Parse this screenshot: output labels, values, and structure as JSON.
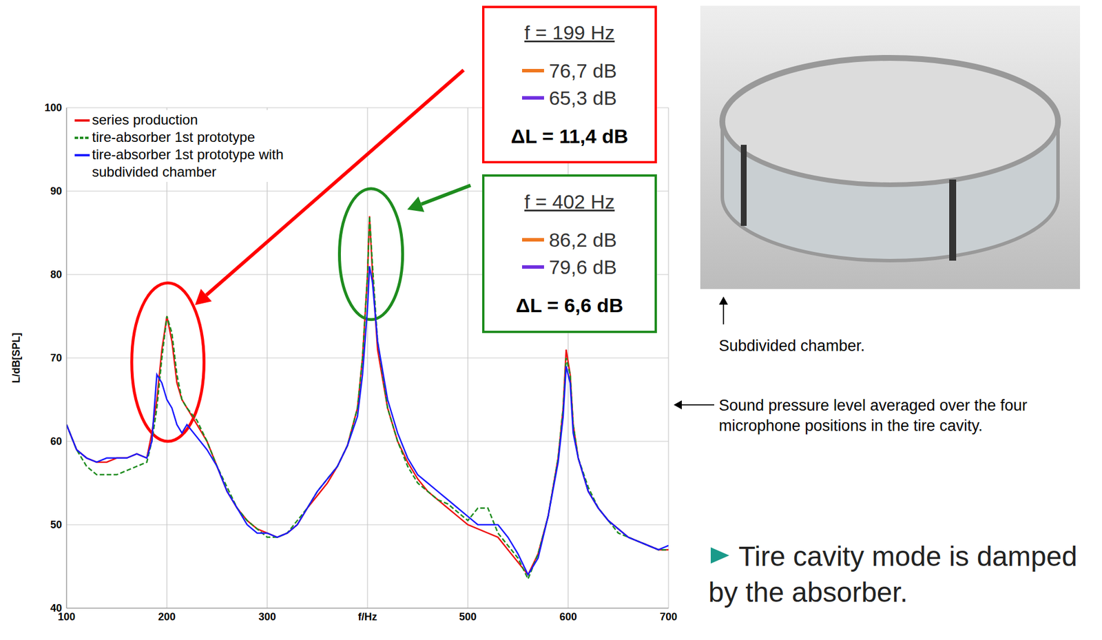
{
  "chart_data": {
    "type": "line",
    "y_label": "L/dB[SPL]",
    "x": [
      100,
      110,
      120,
      130,
      140,
      150,
      160,
      170,
      180,
      185,
      190,
      195,
      200,
      205,
      210,
      215,
      220,
      230,
      240,
      250,
      260,
      270,
      280,
      290,
      300,
      310,
      320,
      330,
      340,
      350,
      360,
      370,
      380,
      390,
      395,
      400,
      402,
      405,
      410,
      420,
      430,
      440,
      450,
      460,
      470,
      480,
      490,
      500,
      510,
      520,
      530,
      540,
      550,
      560,
      570,
      580,
      590,
      595,
      598,
      602,
      605,
      610,
      620,
      630,
      640,
      650,
      660,
      670,
      680,
      690,
      700
    ],
    "series": [
      {
        "name": "series production",
        "color": "#ee1111",
        "line_style": "solid",
        "values": [
          62,
          59,
          58,
          57.5,
          57.5,
          58,
          58,
          58.5,
          58,
          61,
          65,
          71,
          75,
          72,
          67,
          65,
          64,
          62,
          60,
          57,
          54,
          52,
          50.5,
          49.5,
          49,
          48.5,
          49,
          50,
          52,
          53.5,
          55,
          57,
          59.5,
          64,
          70,
          80,
          87,
          80,
          71,
          64,
          60,
          57.5,
          55.5,
          54,
          53,
          52,
          51,
          50,
          49.5,
          49,
          48.5,
          47,
          45.5,
          44,
          46.5,
          51,
          58,
          64,
          71,
          68,
          62,
          58,
          54,
          52,
          50.5,
          49.5,
          48.5,
          48,
          47.5,
          47,
          47
        ]
      },
      {
        "name": "tire-absorber 1st prototype",
        "color": "#1e8c1e",
        "line_style": "dashed",
        "values": [
          62,
          59,
          57,
          56,
          56,
          56,
          56.5,
          57,
          57.5,
          60,
          64,
          70,
          75,
          73,
          68,
          65,
          64,
          62.5,
          60,
          57,
          54.5,
          52,
          50.5,
          49.5,
          48.5,
          48.5,
          49,
          50.5,
          52,
          54,
          55.5,
          57,
          59.5,
          64,
          70,
          80,
          87,
          81,
          72,
          64,
          60,
          57,
          55,
          54,
          53,
          52.5,
          51.5,
          50.5,
          52,
          52,
          49,
          47.5,
          46,
          43.5,
          46.5,
          51,
          58,
          64,
          70,
          68,
          62,
          58,
          54.5,
          52,
          50.5,
          49,
          48.5,
          48,
          47.5,
          47,
          47
        ]
      },
      {
        "name": "tire-absorber 1st prototype with subdivided chamber",
        "color": "#1a1aff",
        "line_style": "solid",
        "values": [
          62,
          59,
          58,
          57.5,
          58,
          58,
          58,
          58.5,
          58,
          60,
          68,
          67,
          65,
          64,
          62,
          61,
          62,
          60.5,
          59,
          57,
          54,
          52,
          50,
          49,
          49,
          48.5,
          49,
          50,
          52,
          54,
          55.5,
          57,
          59.5,
          63,
          68,
          76,
          81,
          79,
          72,
          65,
          61,
          58,
          56,
          55,
          54,
          53,
          52,
          51,
          50,
          50,
          50,
          48.5,
          46.5,
          44,
          46,
          51,
          57.5,
          63,
          69,
          67,
          61,
          58,
          54,
          52,
          50.5,
          49.5,
          48.5,
          48,
          47.5,
          47,
          47.5
        ]
      }
    ],
    "xlim": [
      100,
      700
    ],
    "xticks": [
      100,
      200,
      300,
      {
        "value": 400,
        "label": "f/Hz"
      },
      500,
      600,
      700
    ],
    "ylim": [
      40,
      100
    ],
    "yticks": [
      40,
      50,
      60,
      70,
      80,
      90,
      100
    ],
    "grid": true,
    "legend": "upper left",
    "annotations": [
      {
        "heading": "f = 199 Hz",
        "levels": [
          {
            "label": "76,7 dB",
            "color": "#f07820"
          },
          {
            "label": "65,3 dB",
            "color": "#7030e0"
          }
        ],
        "difference": "ΔL = 11,4 dB",
        "color": "#ff0000",
        "x_range": [
          165,
          237
        ],
        "y_range": [
          60,
          79
        ]
      },
      {
        "heading": "f = 402 Hz",
        "levels": [
          {
            "label": "86,2 dB",
            "color": "#f07820"
          },
          {
            "label": "79,6 dB",
            "color": "#7030e0"
          }
        ],
        "difference": "ΔL = 6,6 dB",
        "color": "#1e8c1e",
        "x_range": [
          372,
          435
        ],
        "y_range": [
          74.6,
          90.3
        ]
      }
    ]
  },
  "side_panel": {
    "photo_caption": "Subdivided chamber.",
    "chart_caption": "Sound pressure level averaged over the four microphone positions in the tire cavity.",
    "conclusion": "Tire cavity mode is damped by the absorber."
  }
}
